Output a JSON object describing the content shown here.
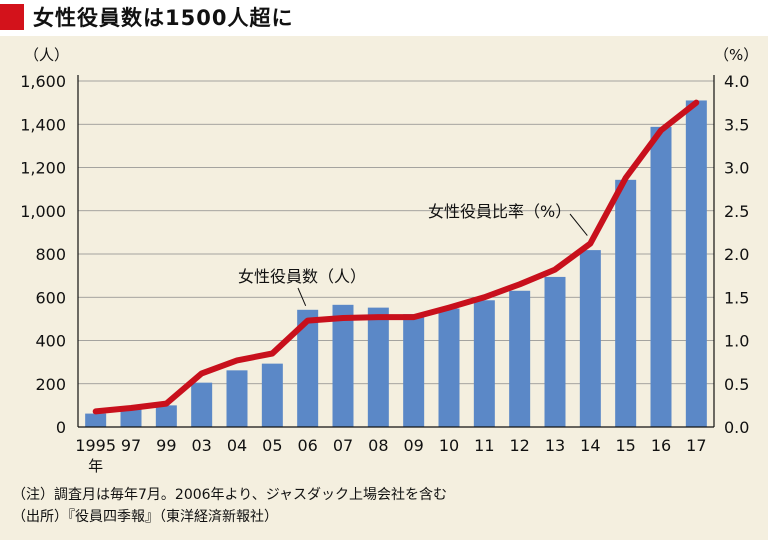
{
  "header": {
    "title": "女性役員数は1500人超に",
    "accent_color": "#d3121b"
  },
  "chart_data": {
    "type": "bar",
    "categories": [
      "1995",
      "97",
      "99",
      "03",
      "04",
      "05",
      "06",
      "07",
      "08",
      "09",
      "10",
      "11",
      "12",
      "13",
      "14",
      "15",
      "16",
      "17"
    ],
    "x_first_year_suffix": "年",
    "series": [
      {
        "name": "女性役員数（人）",
        "type": "bar",
        "axis": "left",
        "color": "#5b88c7",
        "values": [
          62,
          85,
          100,
          205,
          262,
          293,
          542,
          565,
          552,
          522,
          548,
          586,
          630,
          694,
          818,
          1143,
          1388,
          1510
        ]
      },
      {
        "name": "女性役員比率（%）",
        "type": "line",
        "axis": "right",
        "color": "#c8101c",
        "values": [
          0.18,
          0.22,
          0.27,
          0.62,
          0.77,
          0.85,
          1.23,
          1.26,
          1.27,
          1.27,
          1.38,
          1.5,
          1.65,
          1.82,
          2.12,
          2.88,
          3.43,
          3.75
        ]
      }
    ],
    "y_left": {
      "unit": "（人）",
      "ylim": [
        0,
        1600
      ],
      "ticks": [
        "0",
        "200",
        "400",
        "600",
        "800",
        "1,000",
        "1,200",
        "1,400",
        "1,600"
      ]
    },
    "y_right": {
      "unit": "（%）",
      "ylim": [
        0,
        4.0
      ],
      "ticks": [
        "0.0",
        "0.5",
        "1.0",
        "1.5",
        "2.0",
        "2.5",
        "3.0",
        "3.5",
        "4.0"
      ]
    },
    "grid": true,
    "annotations": [
      {
        "text": "女性役員数（人）",
        "target_series": 0,
        "target_index": 6
      },
      {
        "text": "女性役員比率（%）",
        "target_series": 1,
        "target_index": 14
      }
    ]
  },
  "notes": [
    "（注）調査月は毎年7月。2006年より、ジャスダック上場会社を含む",
    "（出所）『役員四季報』（東洋経済新報社）"
  ]
}
